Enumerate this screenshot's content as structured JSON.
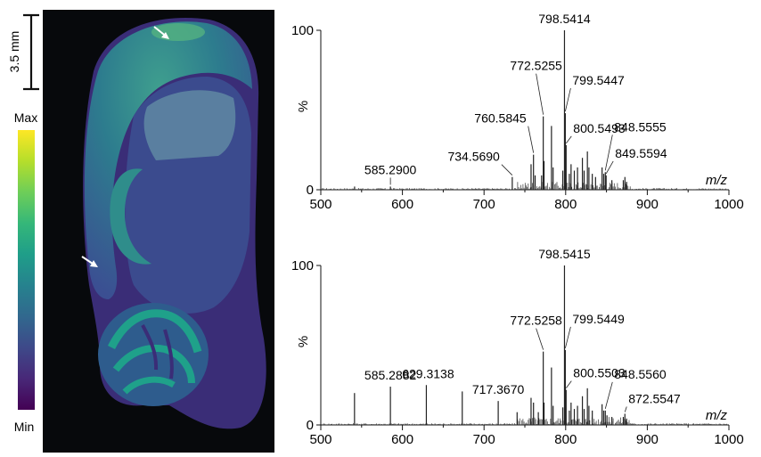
{
  "scale_bar": {
    "label": "3.5 mm"
  },
  "colorbar": {
    "max_label": "Max",
    "min_label": "Min",
    "colors": [
      "#fde725",
      "#b5de2b",
      "#6ece58",
      "#35b779",
      "#1f9e89",
      "#26828e",
      "#31688e",
      "#3e4989",
      "#482878",
      "#440154"
    ]
  },
  "image_panel": {
    "background": "#07090c",
    "arrow_color": "#ffffff"
  },
  "chart_data": [
    {
      "type": "bar",
      "xlabel": "m/z",
      "ylabel": "%",
      "xlim": [
        500,
        1000
      ],
      "ylim": [
        0,
        100
      ],
      "xticks": [
        "500",
        "600",
        "700",
        "800",
        "900",
        "1000"
      ],
      "yticks": [
        "0",
        "100"
      ],
      "peaks": [
        {
          "mz": 541.4,
          "y": 2
        },
        {
          "mz": 585.29,
          "y": 2,
          "label": "585.2900"
        },
        {
          "mz": 734.569,
          "y": 8,
          "label": "734.5690"
        },
        {
          "mz": 757.6,
          "y": 16
        },
        {
          "mz": 760.5845,
          "y": 22,
          "label": "760.5845"
        },
        {
          "mz": 762.6,
          "y": 9
        },
        {
          "mz": 770.5,
          "y": 9
        },
        {
          "mz": 772.5255,
          "y": 46,
          "label": "772.5255"
        },
        {
          "mz": 773.5,
          "y": 18
        },
        {
          "mz": 782.6,
          "y": 40
        },
        {
          "mz": 784.6,
          "y": 14
        },
        {
          "mz": 796.5,
          "y": 12
        },
        {
          "mz": 798.5414,
          "y": 100,
          "label": "798.5414"
        },
        {
          "mz": 799.5447,
          "y": 48,
          "label": "799.5447"
        },
        {
          "mz": 800.5493,
          "y": 28,
          "label": "800.5493"
        },
        {
          "mz": 804.5,
          "y": 10
        },
        {
          "mz": 806.6,
          "y": 16
        },
        {
          "mz": 810.6,
          "y": 12
        },
        {
          "mz": 814.5,
          "y": 14
        },
        {
          "mz": 820.5,
          "y": 20
        },
        {
          "mz": 822.6,
          "y": 12
        },
        {
          "mz": 826.6,
          "y": 24
        },
        {
          "mz": 828.5,
          "y": 14
        },
        {
          "mz": 832.6,
          "y": 10
        },
        {
          "mz": 836.6,
          "y": 8
        },
        {
          "mz": 844.6,
          "y": 14
        },
        {
          "mz": 846.6,
          "y": 10
        },
        {
          "mz": 848.5555,
          "y": 11,
          "label": "848.5555"
        },
        {
          "mz": 849.5594,
          "y": 9,
          "label": "849.5594"
        },
        {
          "mz": 856.6,
          "y": 6
        },
        {
          "mz": 870.6,
          "y": 6
        },
        {
          "mz": 872.6,
          "y": 8
        },
        {
          "mz": 874.6,
          "y": 5
        }
      ]
    },
    {
      "type": "bar",
      "xlabel": "m/z",
      "ylabel": "%",
      "xlim": [
        500,
        1000
      ],
      "ylim": [
        0,
        100
      ],
      "xticks": [
        "500",
        "600",
        "700",
        "800",
        "900",
        "1000"
      ],
      "yticks": [
        "0",
        "100"
      ],
      "peaks": [
        {
          "mz": 541.3,
          "y": 20
        },
        {
          "mz": 585.2882,
          "y": 24,
          "label": "585.2882"
        },
        {
          "mz": 629.3138,
          "y": 25,
          "label": "629.3138"
        },
        {
          "mz": 673.3,
          "y": 21
        },
        {
          "mz": 717.367,
          "y": 15,
          "label": "717.3670"
        },
        {
          "mz": 740.5,
          "y": 8
        },
        {
          "mz": 757.6,
          "y": 17
        },
        {
          "mz": 760.6,
          "y": 14
        },
        {
          "mz": 766.5,
          "y": 8
        },
        {
          "mz": 772.5258,
          "y": 46,
          "label": "772.5258"
        },
        {
          "mz": 773.5,
          "y": 14
        },
        {
          "mz": 782.6,
          "y": 36
        },
        {
          "mz": 784.6,
          "y": 12
        },
        {
          "mz": 796.5,
          "y": 11
        },
        {
          "mz": 798.5415,
          "y": 100,
          "label": "798.5415"
        },
        {
          "mz": 799.5449,
          "y": 47,
          "label": "799.5449"
        },
        {
          "mz": 800.5503,
          "y": 22,
          "label": "800.5503"
        },
        {
          "mz": 804.5,
          "y": 9
        },
        {
          "mz": 806.6,
          "y": 14
        },
        {
          "mz": 810.6,
          "y": 10
        },
        {
          "mz": 814.5,
          "y": 12
        },
        {
          "mz": 820.5,
          "y": 18
        },
        {
          "mz": 822.6,
          "y": 10
        },
        {
          "mz": 826.6,
          "y": 23
        },
        {
          "mz": 828.5,
          "y": 12
        },
        {
          "mz": 832.6,
          "y": 9
        },
        {
          "mz": 844.6,
          "y": 13
        },
        {
          "mz": 846.6,
          "y": 9
        },
        {
          "mz": 848.556,
          "y": 9,
          "label": "848.5560"
        },
        {
          "mz": 850.6,
          "y": 6
        },
        {
          "mz": 856.6,
          "y": 5
        },
        {
          "mz": 870.6,
          "y": 5
        },
        {
          "mz": 872.5547,
          "y": 7,
          "label": "872.5547"
        },
        {
          "mz": 874.6,
          "y": 4
        }
      ]
    }
  ]
}
